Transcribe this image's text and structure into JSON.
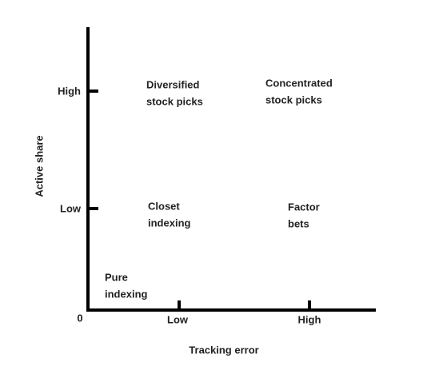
{
  "axes": {
    "y_title": "Active share",
    "x_title": "Tracking error",
    "origin": "0",
    "y_ticks": [
      "High",
      "Low"
    ],
    "x_ticks": [
      "Low",
      "High"
    ]
  },
  "labels": [
    {
      "lines": [
        "Diversified",
        "stock picks"
      ]
    },
    {
      "lines": [
        "Concentrated",
        "stock picks"
      ]
    },
    {
      "lines": [
        "Closet",
        "indexing"
      ]
    },
    {
      "lines": [
        "Factor",
        "bets"
      ]
    },
    {
      "lines": [
        "Pure",
        "indexing"
      ]
    }
  ]
}
